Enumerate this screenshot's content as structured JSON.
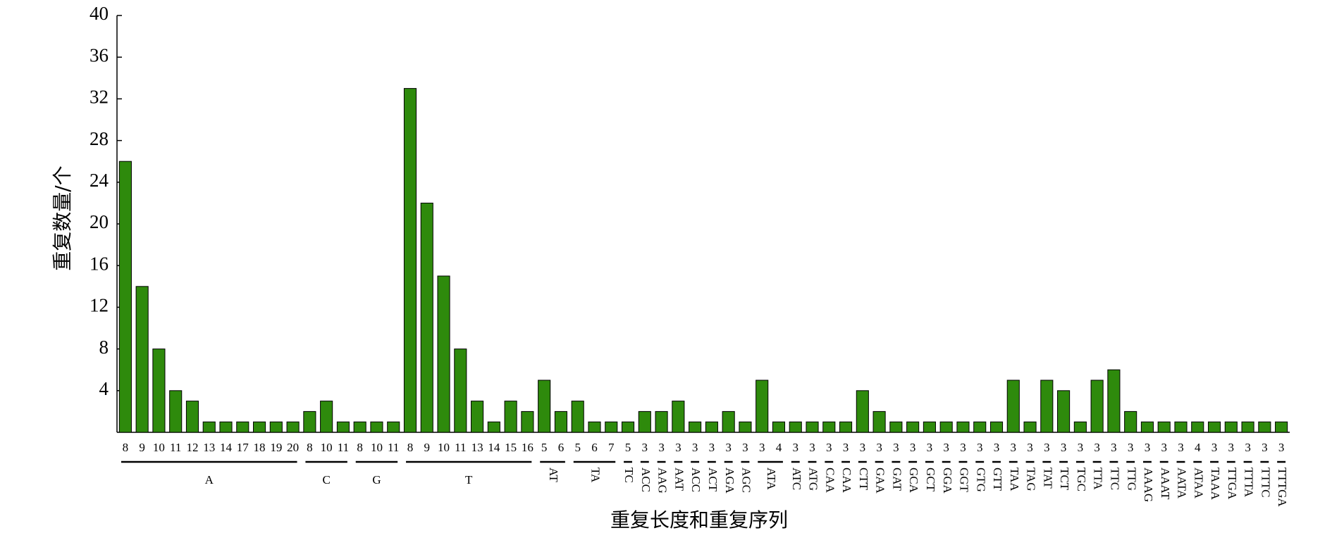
{
  "chart_data": {
    "type": "bar",
    "color": "#2e8a0c",
    "x_label": "重复长度和重复序列",
    "y_label": "重复数量/个",
    "ylim": [
      0,
      40
    ],
    "yticks": [
      4,
      8,
      12,
      16,
      20,
      24,
      28,
      32,
      36,
      40
    ],
    "groups": [
      {
        "name": "A",
        "categories": [
          "8",
          "9",
          "10",
          "11",
          "12",
          "13",
          "14",
          "17",
          "18",
          "19",
          "20"
        ],
        "values": [
          26,
          14,
          8,
          4,
          3,
          1,
          1,
          1,
          1,
          1,
          1
        ]
      },
      {
        "name": "C",
        "categories": [
          "8",
          "10",
          "11"
        ],
        "values": [
          2,
          3,
          1
        ]
      },
      {
        "name": "G",
        "categories": [
          "8",
          "10",
          "11"
        ],
        "values": [
          1,
          1,
          1
        ]
      },
      {
        "name": "T",
        "categories": [
          "8",
          "9",
          "10",
          "11",
          "13",
          "14",
          "15",
          "16"
        ],
        "values": [
          33,
          22,
          15,
          8,
          3,
          1,
          3,
          2
        ]
      },
      {
        "name": "AT",
        "categories": [
          "5",
          "6"
        ],
        "values": [
          5,
          2
        ]
      },
      {
        "name": "TA",
        "categories": [
          "5",
          "6",
          "7"
        ],
        "values": [
          3,
          1,
          1
        ]
      },
      {
        "name": "TC",
        "categories": [
          "5"
        ],
        "values": [
          1
        ]
      },
      {
        "name": "ACC",
        "categories": [
          "3"
        ],
        "values": [
          2
        ]
      },
      {
        "name": "AAG",
        "categories": [
          "3"
        ],
        "values": [
          2
        ]
      },
      {
        "name": "AAT",
        "categories": [
          "3"
        ],
        "values": [
          3
        ]
      },
      {
        "name": "ACC",
        "categories": [
          "3"
        ],
        "values": [
          1
        ]
      },
      {
        "name": "ACT",
        "categories": [
          "3"
        ],
        "values": [
          1
        ]
      },
      {
        "name": "AGA",
        "categories": [
          "3"
        ],
        "values": [
          2
        ]
      },
      {
        "name": "AGC",
        "categories": [
          "3"
        ],
        "values": [
          1
        ]
      },
      {
        "name": "ATA",
        "categories": [
          "3",
          "4"
        ],
        "values": [
          5,
          1
        ]
      },
      {
        "name": "ATC",
        "categories": [
          "3"
        ],
        "values": [
          1
        ]
      },
      {
        "name": "ATG",
        "categories": [
          "3"
        ],
        "values": [
          1
        ]
      },
      {
        "name": "CAA",
        "categories": [
          "3"
        ],
        "values": [
          1
        ]
      },
      {
        "name": "CAA",
        "categories": [
          "3"
        ],
        "values": [
          1
        ]
      },
      {
        "name": "CTT",
        "categories": [
          "3"
        ],
        "values": [
          4
        ]
      },
      {
        "name": "GAA",
        "categories": [
          "3"
        ],
        "values": [
          2
        ]
      },
      {
        "name": "GAT",
        "categories": [
          "3"
        ],
        "values": [
          1
        ]
      },
      {
        "name": "GCA",
        "categories": [
          "3"
        ],
        "values": [
          1
        ]
      },
      {
        "name": "GCT",
        "categories": [
          "3"
        ],
        "values": [
          1
        ]
      },
      {
        "name": "GGA",
        "categories": [
          "3"
        ],
        "values": [
          1
        ]
      },
      {
        "name": "GGT",
        "categories": [
          "3"
        ],
        "values": [
          1
        ]
      },
      {
        "name": "GTG",
        "categories": [
          "3"
        ],
        "values": [
          1
        ]
      },
      {
        "name": "GTT",
        "categories": [
          "3"
        ],
        "values": [
          1
        ]
      },
      {
        "name": "TAA",
        "categories": [
          "3"
        ],
        "values": [
          5
        ]
      },
      {
        "name": "TAG",
        "categories": [
          "3"
        ],
        "values": [
          1
        ]
      },
      {
        "name": "TAT",
        "categories": [
          "3"
        ],
        "values": [
          5
        ]
      },
      {
        "name": "TCT",
        "categories": [
          "3"
        ],
        "values": [
          4
        ]
      },
      {
        "name": "TGC",
        "categories": [
          "3"
        ],
        "values": [
          1
        ]
      },
      {
        "name": "TTA",
        "categories": [
          "3"
        ],
        "values": [
          5
        ]
      },
      {
        "name": "TTC",
        "categories": [
          "3"
        ],
        "values": [
          6
        ]
      },
      {
        "name": "TTG",
        "categories": [
          "3"
        ],
        "values": [
          2
        ]
      },
      {
        "name": "AAAG",
        "categories": [
          "3"
        ],
        "values": [
          1
        ]
      },
      {
        "name": "AAAT",
        "categories": [
          "3"
        ],
        "values": [
          1
        ]
      },
      {
        "name": "AATA",
        "categories": [
          "3"
        ],
        "values": [
          1
        ]
      },
      {
        "name": "ATAA",
        "categories": [
          "4"
        ],
        "values": [
          1
        ]
      },
      {
        "name": "TAAA",
        "categories": [
          "3"
        ],
        "values": [
          1
        ]
      },
      {
        "name": "TTGA",
        "categories": [
          "3"
        ],
        "values": [
          1
        ]
      },
      {
        "name": "TTTA",
        "categories": [
          "3"
        ],
        "values": [
          1
        ]
      },
      {
        "name": "TTTC",
        "categories": [
          "3"
        ],
        "values": [
          1
        ]
      },
      {
        "name": "TTTGA",
        "categories": [
          "3"
        ],
        "values": [
          1
        ]
      }
    ]
  }
}
